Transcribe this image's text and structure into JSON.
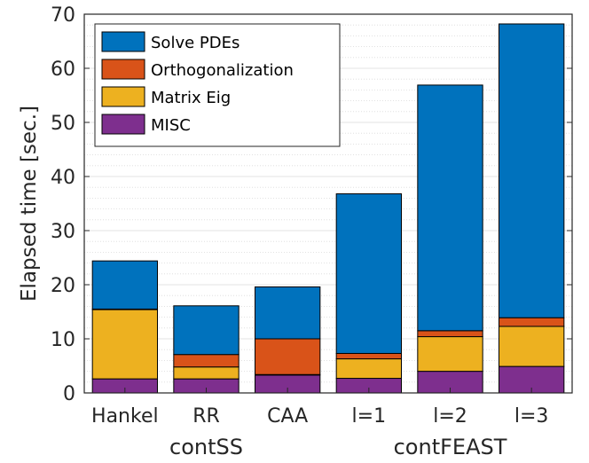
{
  "chart_data": {
    "type": "bar",
    "stacked": true,
    "categories": [
      "Hankel",
      "RR",
      "CAA",
      "l=1",
      "l=2",
      "l=3"
    ],
    "groups": [
      {
        "label": "contSS",
        "categories": [
          "Hankel",
          "RR",
          "CAA"
        ]
      },
      {
        "label": "contFEAST",
        "categories": [
          "l=1",
          "l=2",
          "l=3"
        ]
      }
    ],
    "series": [
      {
        "name": "MISC",
        "color": "#7E2F8E",
        "values": [
          2.6,
          2.6,
          3.3,
          2.7,
          4.0,
          4.9
        ]
      },
      {
        "name": "Matrix Eig",
        "color": "#EDB120",
        "values": [
          12.8,
          2.2,
          0.1,
          3.6,
          6.4,
          7.4
        ]
      },
      {
        "name": "Orthogonalization",
        "color": "#D95319",
        "values": [
          0.1,
          2.3,
          6.6,
          1.0,
          1.1,
          1.6
        ]
      },
      {
        "name": "Solve PDEs",
        "color": "#0072BD",
        "values": [
          8.9,
          9.0,
          9.6,
          29.5,
          45.4,
          54.3
        ]
      }
    ],
    "legend_order": [
      "Solve PDEs",
      "Orthogonalization",
      "Matrix Eig",
      "MISC"
    ],
    "legend_position": "top-left",
    "title": "",
    "xlabel": "",
    "ylabel": "Elapsed time [sec.]",
    "ylim": [
      0,
      70
    ],
    "yticks": [
      0,
      10,
      20,
      30,
      40,
      50,
      60,
      70
    ],
    "grid": true,
    "minor_grid": true
  }
}
